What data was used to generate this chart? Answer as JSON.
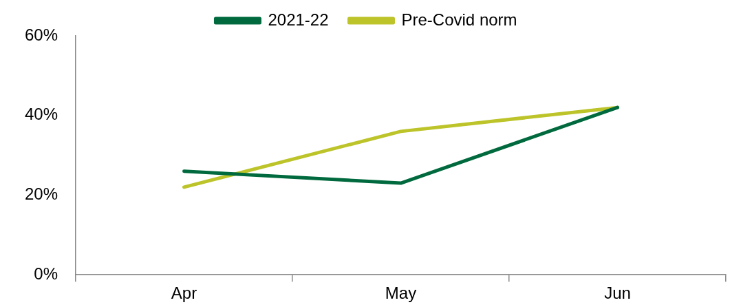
{
  "chart_data": {
    "type": "line",
    "categories": [
      "Apr",
      "May",
      "Jun"
    ],
    "series": [
      {
        "name": "2021-22",
        "color": "#006a3e",
        "values": [
          26,
          23,
          42
        ]
      },
      {
        "name": "Pre-Covid norm",
        "color": "#bcc42a",
        "values": [
          22,
          36,
          42
        ]
      }
    ],
    "ylim": [
      0,
      60
    ],
    "yticks": [
      {
        "value": 0,
        "label": "0%"
      },
      {
        "value": 20,
        "label": "20%"
      },
      {
        "value": 40,
        "label": "40%"
      },
      {
        "value": 60,
        "label": "60%"
      }
    ],
    "grid": false,
    "legend": "top",
    "marker": "none",
    "line_style": "solid"
  }
}
